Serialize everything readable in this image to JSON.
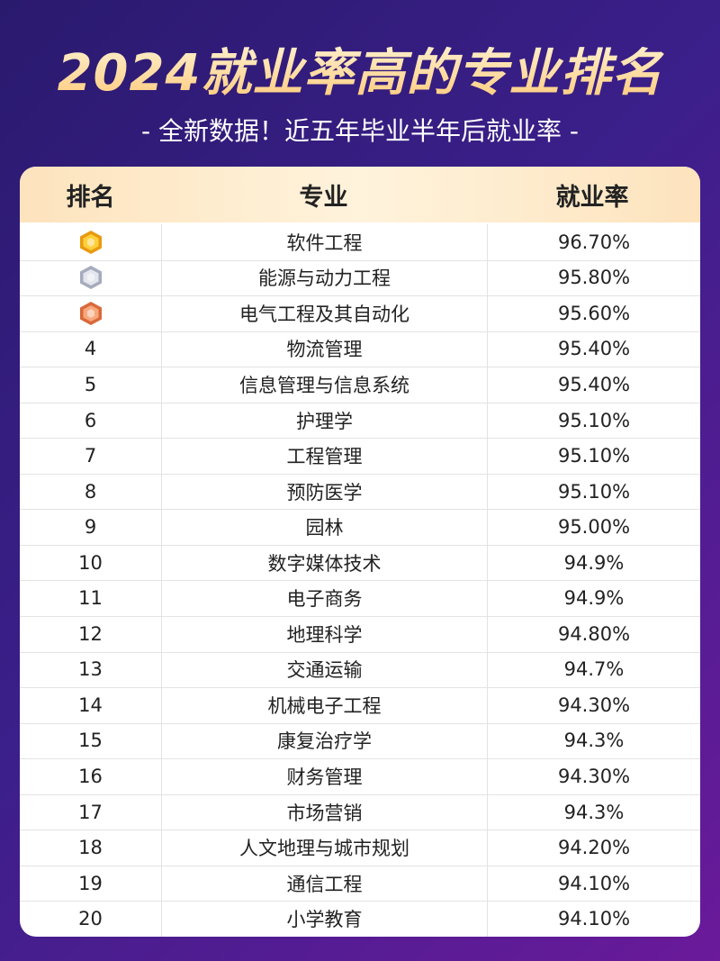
{
  "header": {
    "title": "2024就业率高的专业排名",
    "subtitle": "- 全新数据！近五年毕业半年后就业率 -"
  },
  "table": {
    "columns": [
      "排名",
      "专业",
      "就业率"
    ],
    "rows": [
      [
        null,
        "软件工程",
        "96.70%"
      ],
      [
        null,
        "能源与动力工程",
        "95.80%"
      ],
      [
        null,
        "电气工程及其自动化",
        "95.60%"
      ],
      [
        "4",
        "物流管理",
        "95.40%"
      ],
      [
        "5",
        "信息管理与信息系统",
        "95.40%"
      ],
      [
        "6",
        "护理学",
        "95.10%"
      ],
      [
        "7",
        "工程管理",
        "95.10%"
      ],
      [
        "8",
        "预防医学",
        "95.10%"
      ],
      [
        "9",
        "园林",
        "95.00%"
      ],
      [
        "10",
        "数字媒体技术",
        "94.9%"
      ],
      [
        "11",
        "电子商务",
        "94.9%"
      ],
      [
        "12",
        "地理科学",
        "94.80%"
      ],
      [
        "13",
        "交通运输",
        "94.7%"
      ],
      [
        "14",
        "机械电子工程",
        "94.30%"
      ],
      [
        "15",
        "康复治疗学",
        "94.3%"
      ],
      [
        "16",
        "财务管理",
        "94.30%"
      ],
      [
        "17",
        "市场营销",
        "94.3%"
      ],
      [
        "18",
        "人文地理与城市规划",
        "94.20%"
      ],
      [
        "19",
        "通信工程",
        "94.10%"
      ],
      [
        "20",
        "小学教育",
        "94.10%"
      ]
    ]
  }
}
